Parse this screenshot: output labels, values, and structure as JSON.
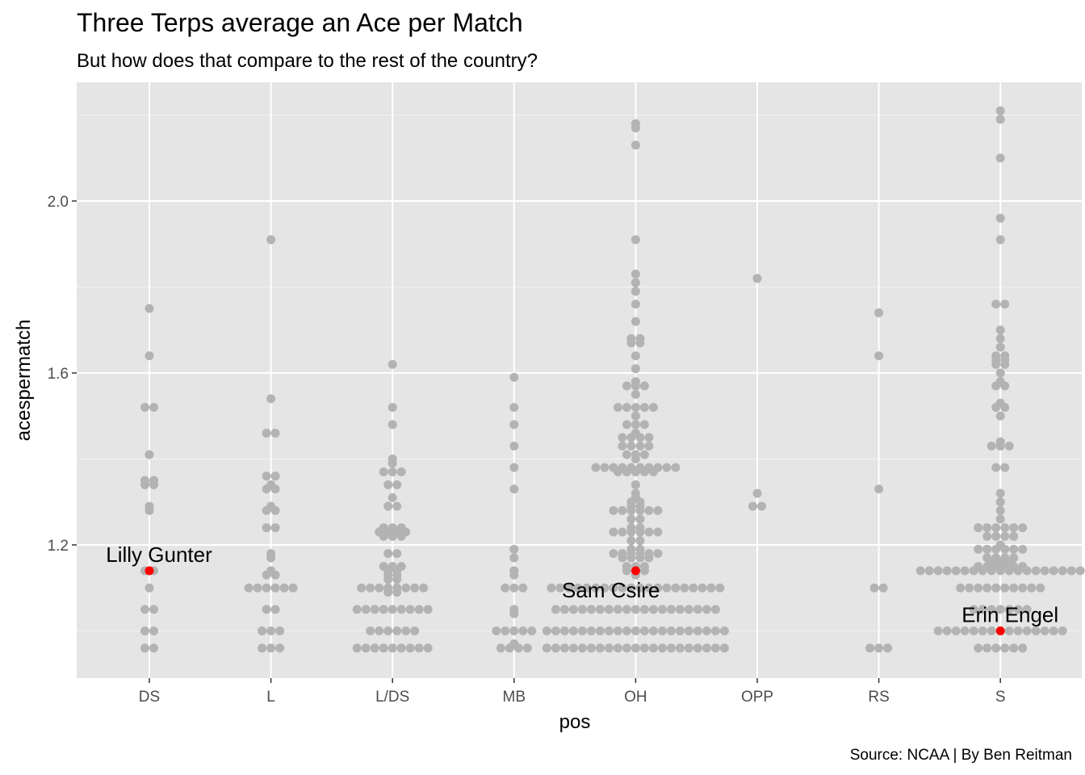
{
  "chart_data": {
    "type": "scatter",
    "title": "Three Terps average an Ace per Match",
    "subtitle": "But how does that compare to the rest of the country?",
    "xlabel": "pos",
    "ylabel": "acespermatch",
    "caption": "Source: NCAA | By Ben Reitman",
    "categories": [
      "DS",
      "L",
      "L/DS",
      "MB",
      "OH",
      "OPP",
      "RS",
      "S"
    ],
    "y_ticks": [
      1.2,
      1.6,
      2.0
    ],
    "y_tick_labels": [
      "1.2",
      "1.6",
      "2.0"
    ],
    "ylim": [
      0.93,
      2.23
    ],
    "grid": true,
    "point_color": "#b3b3b3",
    "highlight_color": "#ff0000",
    "panel_color": "#e5e5e5",
    "series": [
      {
        "category": "DS",
        "values": [
          1.75,
          1.64,
          1.52,
          1.52,
          1.41,
          1.35,
          1.35,
          1.34,
          1.34,
          1.29,
          1.28,
          1.14,
          1.14,
          1.1,
          1.05,
          1.05,
          1.0,
          1.0,
          0.96,
          0.96
        ]
      },
      {
        "category": "L",
        "values": [
          1.91,
          1.54,
          1.46,
          1.46,
          1.36,
          1.36,
          1.34,
          1.33,
          1.33,
          1.29,
          1.28,
          1.28,
          1.24,
          1.24,
          1.18,
          1.17,
          1.14,
          1.13,
          1.13,
          1.1,
          1.1,
          1.1,
          1.1,
          1.1,
          1.1,
          1.05,
          1.05,
          1.0,
          1.0,
          1.0,
          0.96,
          0.96,
          0.96
        ]
      },
      {
        "category": "L/DS",
        "values": [
          1.62,
          1.52,
          1.48,
          1.4,
          1.39,
          1.37,
          1.37,
          1.37,
          1.34,
          1.34,
          1.31,
          1.29,
          1.29,
          1.24,
          1.24,
          1.24,
          1.23,
          1.23,
          1.23,
          1.23,
          1.22,
          1.22,
          1.22,
          1.18,
          1.18,
          1.15,
          1.15,
          1.15,
          1.14,
          1.14,
          1.13,
          1.13,
          1.12,
          1.12,
          1.1,
          1.1,
          1.1,
          1.1,
          1.1,
          1.1,
          1.1,
          1.1,
          1.09,
          1.09,
          1.05,
          1.05,
          1.05,
          1.05,
          1.05,
          1.05,
          1.05,
          1.05,
          1.05,
          1.0,
          1.0,
          1.0,
          1.0,
          1.0,
          1.0,
          0.96,
          0.96,
          0.96,
          0.96,
          0.96,
          0.96,
          0.96,
          0.96,
          0.96
        ]
      },
      {
        "category": "MB",
        "values": [
          1.59,
          1.52,
          1.48,
          1.43,
          1.38,
          1.33,
          1.19,
          1.17,
          1.14,
          1.13,
          1.1,
          1.1,
          1.1,
          1.05,
          1.04,
          1.0,
          1.0,
          1.0,
          1.0,
          1.0,
          0.97,
          0.96,
          0.96,
          0.96,
          0.96
        ]
      },
      {
        "category": "OH",
        "values": [
          2.18,
          2.17,
          2.13,
          1.91,
          1.83,
          1.81,
          1.79,
          1.76,
          1.72,
          1.68,
          1.68,
          1.67,
          1.67,
          1.64,
          1.61,
          1.58,
          1.57,
          1.57,
          1.57,
          1.55,
          1.52,
          1.52,
          1.52,
          1.52,
          1.52,
          1.5,
          1.48,
          1.48,
          1.48,
          1.46,
          1.45,
          1.45,
          1.45,
          1.45,
          1.43,
          1.43,
          1.43,
          1.43,
          1.41,
          1.41,
          1.41,
          1.4,
          1.38,
          1.38,
          1.38,
          1.38,
          1.38,
          1.38,
          1.38,
          1.38,
          1.38,
          1.38,
          1.37,
          1.37,
          1.37,
          1.37,
          1.37,
          1.34,
          1.32,
          1.31,
          1.3,
          1.3,
          1.29,
          1.29,
          1.28,
          1.28,
          1.28,
          1.28,
          1.28,
          1.28,
          1.26,
          1.26,
          1.24,
          1.24,
          1.23,
          1.23,
          1.23,
          1.23,
          1.23,
          1.23,
          1.21,
          1.21,
          1.19,
          1.19,
          1.18,
          1.18,
          1.18,
          1.18,
          1.18,
          1.18,
          1.17,
          1.17,
          1.17,
          1.17,
          1.15,
          1.15,
          1.15,
          1.14,
          1.14,
          1.14,
          1.13,
          1.1,
          1.1,
          1.1,
          1.1,
          1.1,
          1.1,
          1.1,
          1.1,
          1.1,
          1.1,
          1.1,
          1.1,
          1.1,
          1.1,
          1.1,
          1.1,
          1.1,
          1.1,
          1.1,
          1.1,
          1.05,
          1.05,
          1.05,
          1.05,
          1.05,
          1.05,
          1.05,
          1.05,
          1.05,
          1.05,
          1.05,
          1.05,
          1.05,
          1.05,
          1.05,
          1.05,
          1.05,
          1.05,
          1.05,
          1.0,
          1.0,
          1.0,
          1.0,
          1.0,
          1.0,
          1.0,
          1.0,
          1.0,
          1.0,
          1.0,
          1.0,
          1.0,
          1.0,
          1.0,
          1.0,
          1.0,
          1.0,
          1.0,
          1.0,
          1.0,
          0.96,
          0.96,
          0.96,
          0.96,
          0.96,
          0.96,
          0.96,
          0.96,
          0.96,
          0.96,
          0.96,
          0.96,
          0.96,
          0.96,
          0.96,
          0.96,
          0.96,
          0.96,
          0.96,
          0.96,
          0.96
        ]
      },
      {
        "category": "OPP",
        "values": [
          1.82,
          1.32,
          1.29,
          1.29
        ]
      },
      {
        "category": "RS",
        "values": [
          1.74,
          1.64,
          1.33,
          1.1,
          1.1,
          0.96,
          0.96,
          0.96
        ]
      },
      {
        "category": "S",
        "values": [
          2.21,
          2.19,
          2.1,
          1.96,
          1.91,
          1.76,
          1.76,
          1.7,
          1.68,
          1.66,
          1.64,
          1.64,
          1.63,
          1.63,
          1.62,
          1.62,
          1.6,
          1.58,
          1.57,
          1.57,
          1.53,
          1.52,
          1.52,
          1.5,
          1.44,
          1.43,
          1.43,
          1.43,
          1.38,
          1.38,
          1.32,
          1.3,
          1.28,
          1.26,
          1.24,
          1.24,
          1.24,
          1.24,
          1.24,
          1.24,
          1.22,
          1.22,
          1.22,
          1.22,
          1.2,
          1.19,
          1.19,
          1.19,
          1.19,
          1.19,
          1.19,
          1.17,
          1.17,
          1.17,
          1.17,
          1.16,
          1.16,
          1.16,
          1.15,
          1.15,
          1.15,
          1.15,
          1.15,
          1.15,
          1.14,
          1.14,
          1.14,
          1.14,
          1.14,
          1.14,
          1.14,
          1.14,
          1.14,
          1.14,
          1.14,
          1.14,
          1.14,
          1.14,
          1.14,
          1.14,
          1.14,
          1.14,
          1.14,
          1.1,
          1.1,
          1.1,
          1.1,
          1.1,
          1.1,
          1.1,
          1.1,
          1.1,
          1.1,
          1.05,
          1.05,
          1.05,
          1.05,
          1.05,
          1.05,
          1.05,
          1.0,
          1.0,
          1.0,
          1.0,
          1.0,
          1.0,
          1.0,
          1.0,
          1.0,
          1.0,
          1.0,
          1.0,
          1.0,
          1.0,
          1.0,
          0.96,
          0.96,
          0.96,
          0.96,
          0.96,
          0.96
        ]
      }
    ],
    "highlights": [
      {
        "name": "Lilly Gunter",
        "category": "DS",
        "value": 1.14,
        "label_anchor": "middle",
        "label_side": "above"
      },
      {
        "name": "Sam Csire",
        "category": "OH",
        "value": 1.14,
        "label_anchor": "end",
        "label_side": "below"
      },
      {
        "name": "Erin Engel",
        "category": "S",
        "value": 1.0,
        "label_anchor": "middle",
        "label_side": "above"
      }
    ]
  }
}
